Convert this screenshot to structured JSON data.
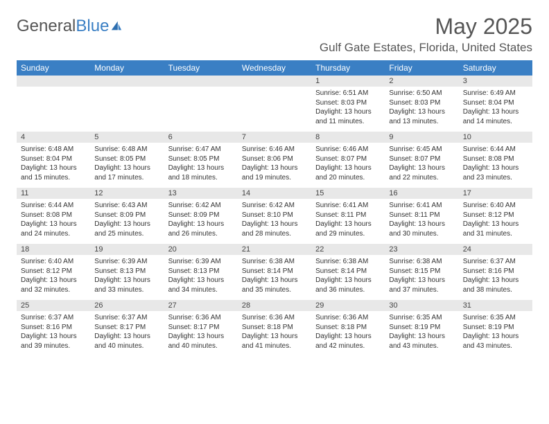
{
  "brand": {
    "name_part1": "General",
    "name_part2": "Blue"
  },
  "title": "May 2025",
  "location": "Gulf Gate Estates, Florida, United States",
  "colors": {
    "header_bg": "#3a7fc4",
    "daynum_bg": "#e8e8e8",
    "text": "#333333"
  },
  "day_headers": [
    "Sunday",
    "Monday",
    "Tuesday",
    "Wednesday",
    "Thursday",
    "Friday",
    "Saturday"
  ],
  "weeks": [
    [
      null,
      null,
      null,
      null,
      {
        "n": "1",
        "sr": "6:51 AM",
        "ss": "8:03 PM",
        "dl": "13 hours and 11 minutes."
      },
      {
        "n": "2",
        "sr": "6:50 AM",
        "ss": "8:03 PM",
        "dl": "13 hours and 13 minutes."
      },
      {
        "n": "3",
        "sr": "6:49 AM",
        "ss": "8:04 PM",
        "dl": "13 hours and 14 minutes."
      }
    ],
    [
      {
        "n": "4",
        "sr": "6:48 AM",
        "ss": "8:04 PM",
        "dl": "13 hours and 15 minutes."
      },
      {
        "n": "5",
        "sr": "6:48 AM",
        "ss": "8:05 PM",
        "dl": "13 hours and 17 minutes."
      },
      {
        "n": "6",
        "sr": "6:47 AM",
        "ss": "8:05 PM",
        "dl": "13 hours and 18 minutes."
      },
      {
        "n": "7",
        "sr": "6:46 AM",
        "ss": "8:06 PM",
        "dl": "13 hours and 19 minutes."
      },
      {
        "n": "8",
        "sr": "6:46 AM",
        "ss": "8:07 PM",
        "dl": "13 hours and 20 minutes."
      },
      {
        "n": "9",
        "sr": "6:45 AM",
        "ss": "8:07 PM",
        "dl": "13 hours and 22 minutes."
      },
      {
        "n": "10",
        "sr": "6:44 AM",
        "ss": "8:08 PM",
        "dl": "13 hours and 23 minutes."
      }
    ],
    [
      {
        "n": "11",
        "sr": "6:44 AM",
        "ss": "8:08 PM",
        "dl": "13 hours and 24 minutes."
      },
      {
        "n": "12",
        "sr": "6:43 AM",
        "ss": "8:09 PM",
        "dl": "13 hours and 25 minutes."
      },
      {
        "n": "13",
        "sr": "6:42 AM",
        "ss": "8:09 PM",
        "dl": "13 hours and 26 minutes."
      },
      {
        "n": "14",
        "sr": "6:42 AM",
        "ss": "8:10 PM",
        "dl": "13 hours and 28 minutes."
      },
      {
        "n": "15",
        "sr": "6:41 AM",
        "ss": "8:11 PM",
        "dl": "13 hours and 29 minutes."
      },
      {
        "n": "16",
        "sr": "6:41 AM",
        "ss": "8:11 PM",
        "dl": "13 hours and 30 minutes."
      },
      {
        "n": "17",
        "sr": "6:40 AM",
        "ss": "8:12 PM",
        "dl": "13 hours and 31 minutes."
      }
    ],
    [
      {
        "n": "18",
        "sr": "6:40 AM",
        "ss": "8:12 PM",
        "dl": "13 hours and 32 minutes."
      },
      {
        "n": "19",
        "sr": "6:39 AM",
        "ss": "8:13 PM",
        "dl": "13 hours and 33 minutes."
      },
      {
        "n": "20",
        "sr": "6:39 AM",
        "ss": "8:13 PM",
        "dl": "13 hours and 34 minutes."
      },
      {
        "n": "21",
        "sr": "6:38 AM",
        "ss": "8:14 PM",
        "dl": "13 hours and 35 minutes."
      },
      {
        "n": "22",
        "sr": "6:38 AM",
        "ss": "8:14 PM",
        "dl": "13 hours and 36 minutes."
      },
      {
        "n": "23",
        "sr": "6:38 AM",
        "ss": "8:15 PM",
        "dl": "13 hours and 37 minutes."
      },
      {
        "n": "24",
        "sr": "6:37 AM",
        "ss": "8:16 PM",
        "dl": "13 hours and 38 minutes."
      }
    ],
    [
      {
        "n": "25",
        "sr": "6:37 AM",
        "ss": "8:16 PM",
        "dl": "13 hours and 39 minutes."
      },
      {
        "n": "26",
        "sr": "6:37 AM",
        "ss": "8:17 PM",
        "dl": "13 hours and 40 minutes."
      },
      {
        "n": "27",
        "sr": "6:36 AM",
        "ss": "8:17 PM",
        "dl": "13 hours and 40 minutes."
      },
      {
        "n": "28",
        "sr": "6:36 AM",
        "ss": "8:18 PM",
        "dl": "13 hours and 41 minutes."
      },
      {
        "n": "29",
        "sr": "6:36 AM",
        "ss": "8:18 PM",
        "dl": "13 hours and 42 minutes."
      },
      {
        "n": "30",
        "sr": "6:35 AM",
        "ss": "8:19 PM",
        "dl": "13 hours and 43 minutes."
      },
      {
        "n": "31",
        "sr": "6:35 AM",
        "ss": "8:19 PM",
        "dl": "13 hours and 43 minutes."
      }
    ]
  ],
  "labels": {
    "sunrise": "Sunrise:",
    "sunset": "Sunset:",
    "daylight": "Daylight:"
  }
}
